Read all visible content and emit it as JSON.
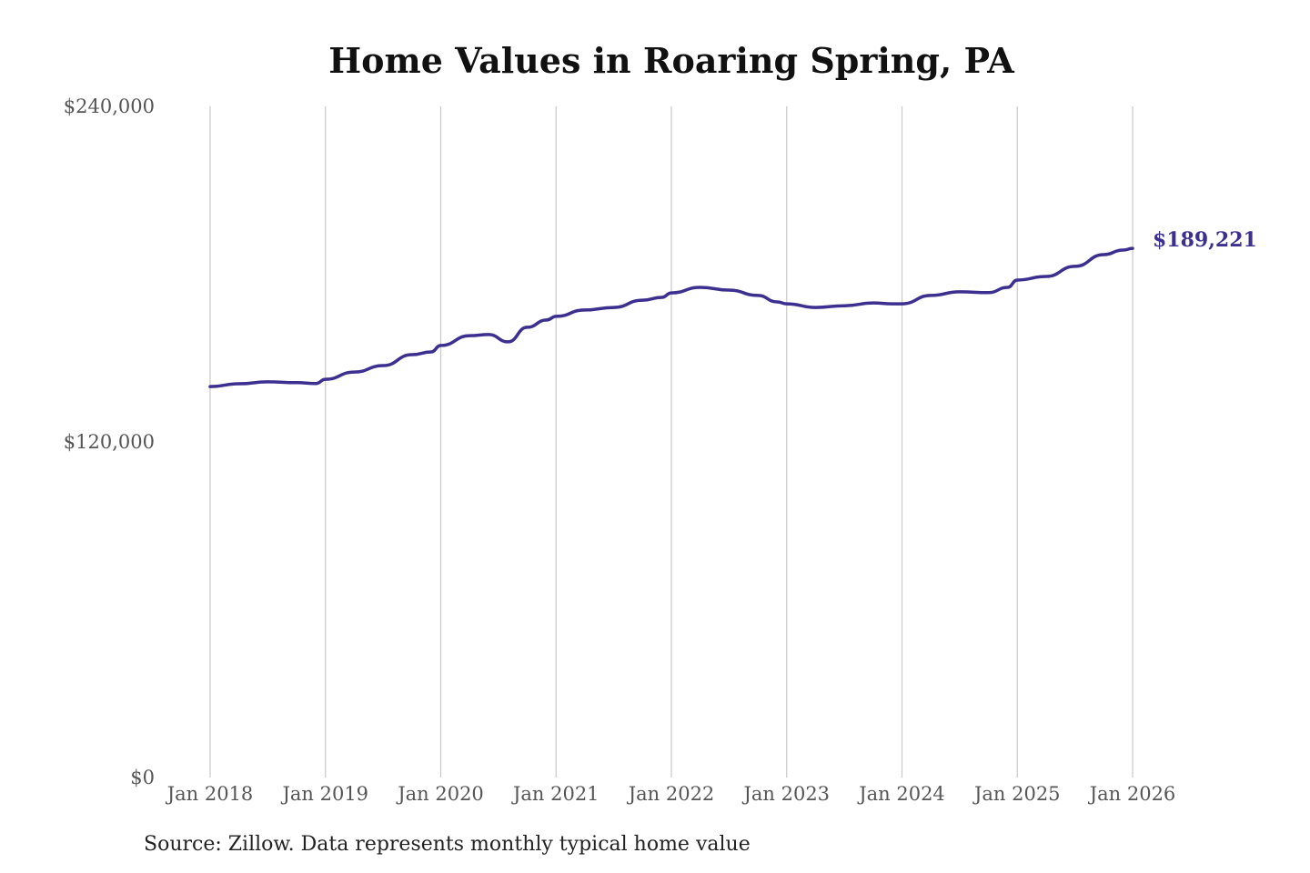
{
  "chart_data": {
    "type": "line",
    "title": "Home Values in Roaring Spring, PA",
    "source": "Source: Zillow. Data represents monthly typical home value",
    "ylim": [
      0,
      240000
    ],
    "y_ticks": [
      0,
      120000,
      240000
    ],
    "y_tick_labels": [
      "$0",
      "$120,000",
      "$240,000"
    ],
    "x_ticks": [
      "2018-01",
      "2019-01",
      "2020-01",
      "2021-01",
      "2022-01",
      "2023-01",
      "2024-01",
      "2025-01",
      "2026-01"
    ],
    "x_tick_labels": [
      "Jan 2018",
      "Jan 2019",
      "Jan 2020",
      "Jan 2021",
      "Jan 2022",
      "Jan 2023",
      "Jan 2024",
      "Jan 2025",
      "Jan 2026"
    ],
    "grid": "vertical",
    "line_color": "#3b2f8f",
    "end_label": "$189,221",
    "series": [
      {
        "x": [
          "2018-01",
          "2018-04",
          "2018-07",
          "2018-10",
          "2018-12",
          "2019-01",
          "2019-04",
          "2019-07",
          "2019-10",
          "2019-12",
          "2020-01",
          "2020-04",
          "2020-06",
          "2020-08",
          "2020-10",
          "2020-12",
          "2021-01",
          "2021-04",
          "2021-07",
          "2021-10",
          "2021-12",
          "2022-01",
          "2022-04",
          "2022-07",
          "2022-10",
          "2022-12",
          "2023-01",
          "2023-04",
          "2023-07",
          "2023-10",
          "2023-12",
          "2024-01",
          "2024-04",
          "2024-07",
          "2024-10",
          "2024-12",
          "2025-01",
          "2025-04",
          "2025-07",
          "2025-10",
          "2025-12",
          "2026-01"
        ],
        "y": [
          139800,
          140800,
          141500,
          141200,
          140900,
          142400,
          145000,
          147300,
          151200,
          152200,
          154500,
          158000,
          158400,
          155800,
          161000,
          163600,
          164900,
          167200,
          168100,
          170700,
          171700,
          173300,
          175300,
          174300,
          172400,
          170100,
          169400,
          168100,
          168700,
          169700,
          169400,
          169400,
          172400,
          173700,
          173400,
          175300,
          177900,
          179200,
          182800,
          187000,
          188600,
          189221
        ]
      }
    ]
  }
}
